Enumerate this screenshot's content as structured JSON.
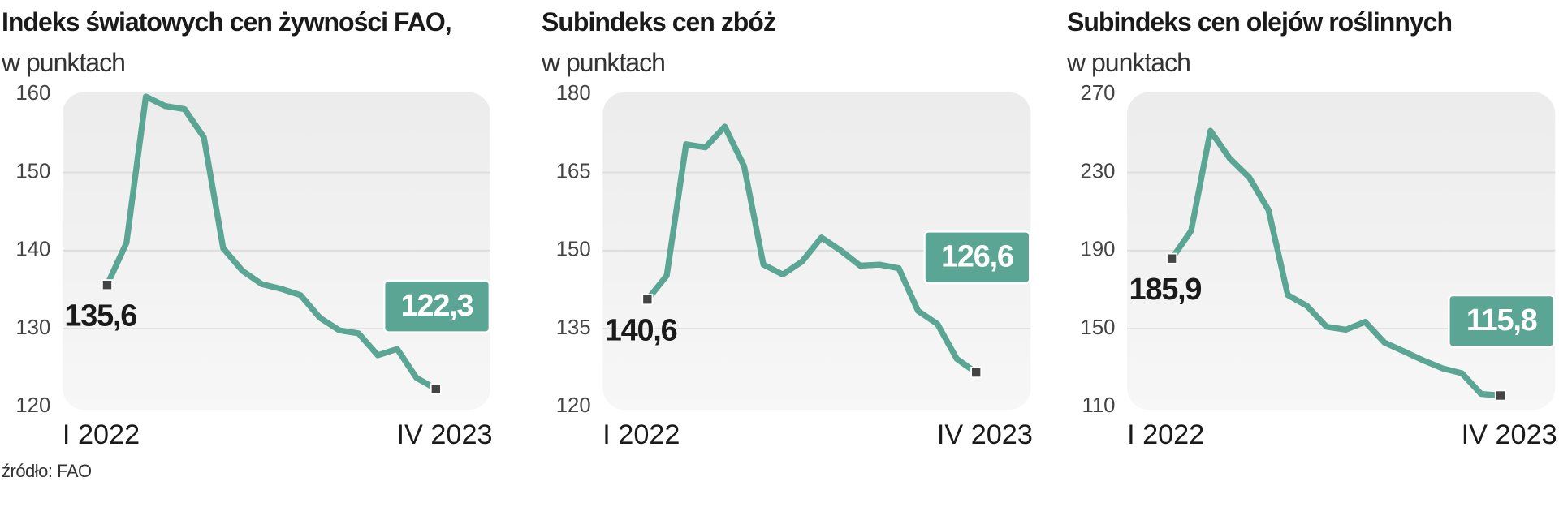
{
  "source": "źródło: FAO",
  "chart_data": [
    {
      "type": "line",
      "title": "Indeks światowych cen żywności FAO,",
      "subtitle": "w punktach",
      "color": "#5ba595",
      "categories": [
        "I 2022",
        null,
        null,
        null,
        null,
        null,
        null,
        null,
        null,
        null,
        null,
        null,
        null,
        null,
        null,
        null,
        null,
        "IV 2023"
      ],
      "values": [
        135.6,
        141.0,
        159.7,
        158.5,
        158.1,
        154.5,
        140.3,
        137.4,
        135.7,
        135.1,
        134.3,
        131.4,
        129.8,
        129.4,
        126.6,
        127.4,
        123.7,
        122.3
      ],
      "value_labels": [
        "135,6",
        null,
        null,
        null,
        null,
        null,
        null,
        null,
        null,
        null,
        null,
        null,
        null,
        null,
        null,
        null,
        null,
        "122,3"
      ],
      "ylim": [
        120,
        160
      ],
      "yticks": [
        120,
        130,
        140,
        150,
        160
      ],
      "grid": true
    },
    {
      "type": "line",
      "title": "Subindeks cen zbóż",
      "subtitle": "w punktach",
      "color": "#5ba595",
      "categories": [
        "I 2022",
        null,
        null,
        null,
        null,
        null,
        null,
        null,
        null,
        null,
        null,
        null,
        null,
        null,
        null,
        null,
        null,
        "IV 2023"
      ],
      "values": [
        140.6,
        145.2,
        170.4,
        169.8,
        173.8,
        166.2,
        147.3,
        145.4,
        147.9,
        152.5,
        150.0,
        147.1,
        147.3,
        146.6,
        138.4,
        135.9,
        129.2,
        126.6
      ],
      "value_labels": [
        "140,6",
        null,
        null,
        null,
        null,
        null,
        null,
        null,
        null,
        null,
        null,
        null,
        null,
        null,
        null,
        null,
        null,
        "126,6"
      ],
      "ylim": [
        120,
        180
      ],
      "yticks": [
        120,
        135,
        150,
        165,
        180
      ],
      "grid": true
    },
    {
      "type": "line",
      "title": "Subindeks cen olejów roślinnych",
      "subtitle": "w punktach",
      "color": "#5ba595",
      "categories": [
        "I 2022",
        null,
        null,
        null,
        null,
        null,
        null,
        null,
        null,
        null,
        null,
        null,
        null,
        null,
        null,
        null,
        null,
        "IV 2023"
      ],
      "values": [
        185.9,
        200.1,
        251.3,
        237.1,
        227.5,
        210.8,
        167.2,
        161.6,
        151.0,
        149.5,
        153.5,
        142.9,
        138.4,
        133.8,
        129.7,
        127.2,
        116.6,
        115.8
      ],
      "value_labels": [
        "185,9",
        null,
        null,
        null,
        null,
        null,
        null,
        null,
        null,
        null,
        null,
        null,
        null,
        null,
        null,
        null,
        null,
        "115,8"
      ],
      "ylim": [
        110,
        270
      ],
      "yticks": [
        110,
        150,
        190,
        230,
        270
      ],
      "grid": true
    }
  ]
}
